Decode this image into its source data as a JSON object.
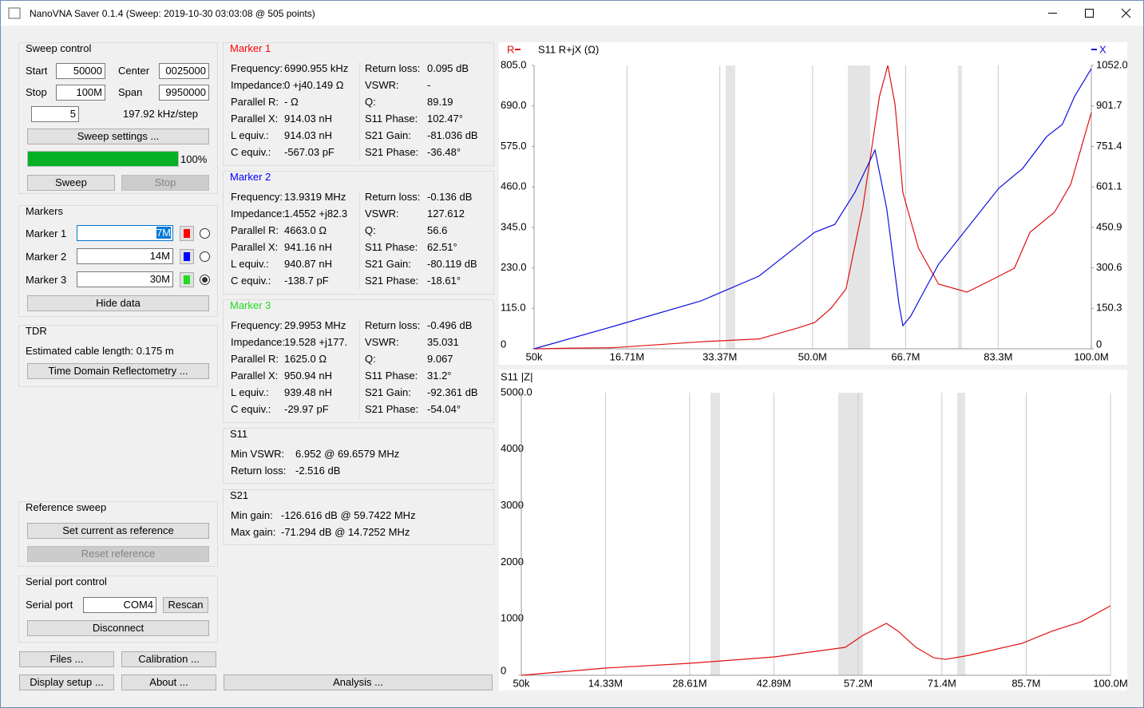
{
  "window": {
    "title": "NanoVNA Saver 0.1.4 (Sweep: 2019-10-30 03:03:08 @ 505 points)"
  },
  "sweep_control": {
    "title": "Sweep control",
    "start_label": "Start",
    "start": "50000",
    "center_label": "Center",
    "center": "0025000",
    "stop_label": "Stop",
    "stop": "100M",
    "span_label": "Span",
    "span": "9950000",
    "segments": "5",
    "step": "197.92 kHz/step",
    "settings_button": "Sweep settings ...",
    "progress": 100,
    "progress_label": "100%",
    "sweep_button": "Sweep",
    "stop_button": "Stop"
  },
  "markers": {
    "title": "Markers",
    "selected": 2,
    "items": [
      {
        "label": "Marker 1",
        "value": "7M",
        "color": "#ff0000"
      },
      {
        "label": "Marker 2",
        "value": "14M",
        "color": "#0000ff"
      },
      {
        "label": "Marker 3",
        "value": "30M",
        "color": "#1fdc1f"
      }
    ],
    "hide_button": "Hide data"
  },
  "tdr": {
    "title": "TDR",
    "text": "Estimated cable length: 0.175 m",
    "button": "Time Domain Reflectometry ..."
  },
  "reference": {
    "title": "Reference sweep",
    "set_button": "Set current as reference",
    "reset_button": "Reset reference"
  },
  "serial": {
    "title": "Serial port control",
    "label": "Serial port",
    "port": "COM4",
    "rescan_button": "Rescan",
    "disconnect_button": "Disconnect"
  },
  "buttons": {
    "files": "Files ...",
    "calibration": "Calibration ...",
    "display_setup": "Display setup ...",
    "about": "About ...",
    "analysis": "Analysis ..."
  },
  "marker_panels": [
    {
      "title": "Marker 1",
      "left": [
        [
          "Frequency:",
          "6990.955 kHz"
        ],
        [
          "Impedance:",
          "0 +j40.149 Ω"
        ],
        [
          "Parallel R:",
          "- Ω"
        ],
        [
          "Parallel X:",
          "914.03 nH"
        ],
        [
          "L equiv.:",
          "914.03 nH"
        ],
        [
          "C equiv.:",
          "-567.03 pF"
        ]
      ],
      "right": [
        [
          "Return loss:",
          "0.095 dB"
        ],
        [
          "VSWR:",
          "-"
        ],
        [
          "Q:",
          "89.19"
        ],
        [
          "S11 Phase:",
          "102.47°"
        ],
        [
          "S21 Gain:",
          "-81.036 dB"
        ],
        [
          "S21 Phase:",
          "-36.48°"
        ]
      ]
    },
    {
      "title": "Marker 2",
      "left": [
        [
          "Frequency:",
          "13.9319 MHz"
        ],
        [
          "Impedance:",
          "1.4552 +j82.3"
        ],
        [
          "Parallel R:",
          "4663.0 Ω"
        ],
        [
          "Parallel X:",
          "941.16 nH"
        ],
        [
          "L equiv.:",
          "940.87 nH"
        ],
        [
          "C equiv.:",
          "-138.7 pF"
        ]
      ],
      "right": [
        [
          "Return loss:",
          "-0.136 dB"
        ],
        [
          "VSWR:",
          "127.612"
        ],
        [
          "Q:",
          "56.6"
        ],
        [
          "S11 Phase:",
          "62.51°"
        ],
        [
          "S21 Gain:",
          "-80.119 dB"
        ],
        [
          "S21 Phase:",
          "-18.61°"
        ]
      ]
    },
    {
      "title": "Marker 3",
      "left": [
        [
          "Frequency:",
          "29.9953 MHz"
        ],
        [
          "Impedance:",
          "19.528 +j177."
        ],
        [
          "Parallel R:",
          "1625.0 Ω"
        ],
        [
          "Parallel X:",
          "950.94 nH"
        ],
        [
          "L equiv.:",
          "939.48 nH"
        ],
        [
          "C equiv.:",
          "-29.97 pF"
        ]
      ],
      "right": [
        [
          "Return loss:",
          "-0.496 dB"
        ],
        [
          "VSWR:",
          "35.031"
        ],
        [
          "Q:",
          "9.067"
        ],
        [
          "S11 Phase:",
          "31.2°"
        ],
        [
          "S21 Gain:",
          "-92.361 dB"
        ],
        [
          "S21 Phase:",
          "-54.04°"
        ]
      ]
    }
  ],
  "s11": {
    "title": "S11",
    "rows": [
      [
        "Min VSWR:",
        "6.952 @ 69.6579 MHz"
      ],
      [
        "Return loss:",
        "-2.516 dB"
      ]
    ]
  },
  "s21": {
    "title": "S21",
    "rows": [
      [
        "Min gain:",
        "-126.616 dB @ 59.7422 MHz"
      ],
      [
        "Max gain:",
        "-71.294 dB @ 14.7252 MHz"
      ]
    ]
  },
  "charts": [
    {
      "type": "line",
      "title": "S11  R+jX (Ω)",
      "xlim": [
        50000,
        100000000
      ],
      "xticks": [
        {
          "value": 50000,
          "label": "50k"
        },
        {
          "value": 16710000,
          "label": "16.71M"
        },
        {
          "value": 33370000,
          "label": "33.37M"
        },
        {
          "value": 50000000,
          "label": "50.0M"
        },
        {
          "value": 66700000,
          "label": "66.7M"
        },
        {
          "value": 83300000,
          "label": "83.3M"
        },
        {
          "value": 100000000,
          "label": "100.0M"
        }
      ],
      "ylim": [
        0,
        805
      ],
      "yticks": [
        0,
        {
          "value": 115,
          "label": "115.0"
        },
        {
          "value": 230,
          "label": "230.0"
        },
        {
          "value": 345,
          "label": "345.0"
        },
        {
          "value": 460,
          "label": "460.0"
        },
        {
          "value": 575,
          "label": "575.0"
        },
        {
          "value": 690,
          "label": "690.0"
        },
        {
          "value": 805,
          "label": "805.0"
        }
      ],
      "y2lim": [
        0,
        1052
      ],
      "y2ticks": [
        0,
        150.3,
        300.6,
        450.9,
        601.1,
        751.4,
        901.7,
        {
          "value": 1052,
          "label": "1052.0"
        }
      ],
      "series": [
        {
          "name": "R",
          "color": "#e01010",
          "x": [
            50000,
            7000000,
            14000000,
            30000000,
            40400000,
            47500000,
            50400000,
            53300000,
            56000000,
            59000000,
            62000000,
            63500000,
            64800000,
            66200000,
            69000000,
            72600000,
            77700000,
            82000000,
            86200000,
            89000000,
            93400000,
            96300000,
            100000000
          ],
          "values": [
            0,
            2,
            3,
            20,
            28,
            60,
            75,
            115,
            170,
            400,
            717,
            805,
            694,
            444,
            286,
            184,
            161,
            195,
            229,
            331,
            388,
            467,
            671
          ]
        },
        {
          "name": "X",
          "color": "#1010e0",
          "axis": "y2",
          "x": [
            50000,
            14200000,
            30000000,
            40400000,
            50400000,
            54000000,
            57600000,
            61200000,
            63300000,
            65500000,
            66200000,
            67600000,
            72600000,
            77700000,
            83400000,
            87700000,
            92000000,
            94800000,
            97000000,
            100000000
          ],
          "values": [
            0,
            83,
            178,
            270,
            433,
            462,
            581,
            738,
            521,
            166,
            86,
            121,
            314,
            447,
            596,
            670,
            788,
            833,
            937,
            1040
          ]
        }
      ]
    },
    {
      "type": "line",
      "title": "S11  |Z|",
      "xlim": [
        50000,
        100000000
      ],
      "xticks": [
        {
          "value": 50000,
          "label": "50k"
        },
        {
          "value": 14330000,
          "label": "14.33M"
        },
        {
          "value": 28610000,
          "label": "28.61M"
        },
        {
          "value": 42890000,
          "label": "42.89M"
        },
        {
          "value": 57200000,
          "label": "57.2M"
        },
        {
          "value": 71400000,
          "label": "71.4M"
        },
        {
          "value": 85700000,
          "label": "85.7M"
        },
        {
          "value": 100000000,
          "label": "100.0M"
        }
      ],
      "ylim": [
        0,
        5000
      ],
      "yticks": [
        0,
        1000,
        2000,
        3000,
        4000,
        {
          "value": 5000,
          "label": "5000.0"
        }
      ],
      "series": [
        {
          "color": "#e01010",
          "x": [
            50000,
            14300000,
            28600000,
            43000000,
            50000000,
            55000000,
            58000000,
            62000000,
            64000000,
            67000000,
            70000000,
            72000000,
            76000000,
            85000000,
            90000000,
            95000000,
            100000000
          ],
          "values": [
            0,
            127,
            212,
            325,
            424,
            494,
            706,
            918,
            777,
            494,
            311,
            282,
            353,
            565,
            777,
            946,
            1229
          ]
        }
      ]
    }
  ]
}
